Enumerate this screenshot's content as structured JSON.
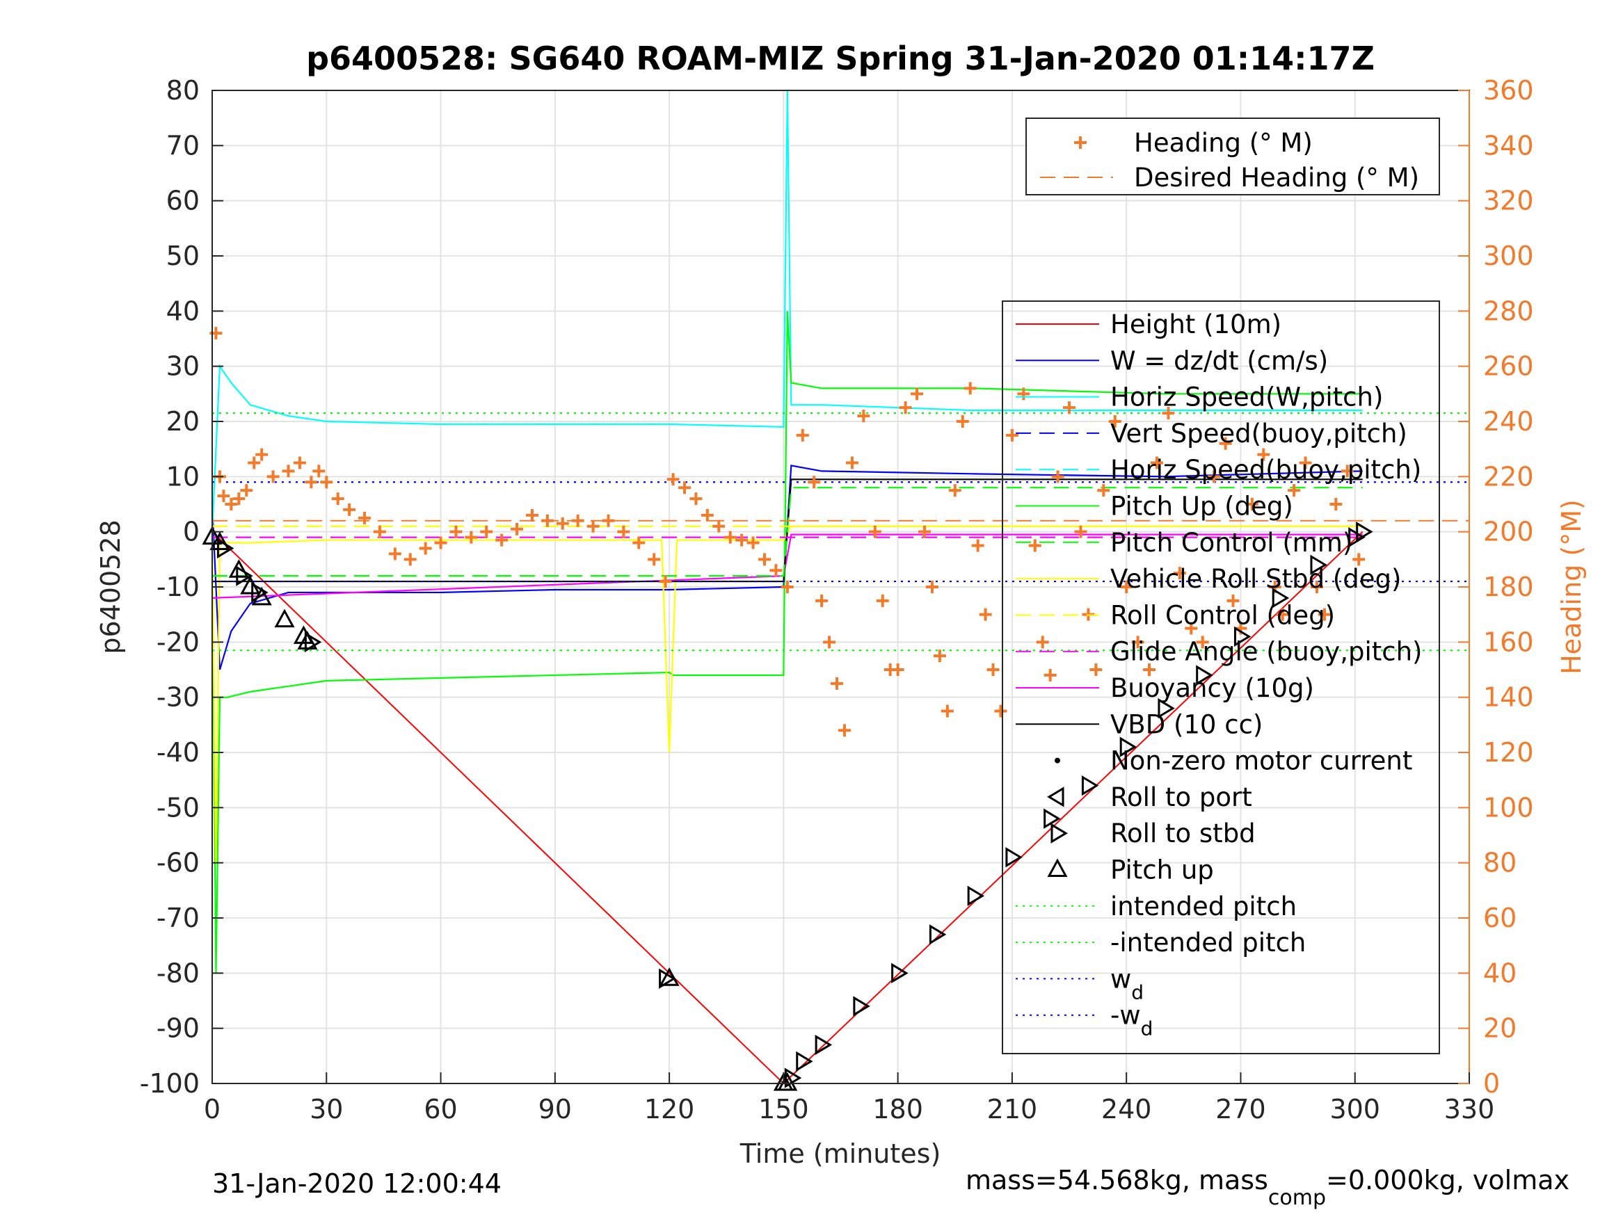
{
  "chart_data": {
    "type": "line",
    "title": "p6400528: SG640 ROAM-MIZ Spring 31-Jan-2020 01:14:17Z",
    "xlabel": "Time (minutes)",
    "ylabel_left": "p6400528",
    "ylabel_right": "Heading (°M)",
    "xlim": [
      0,
      330
    ],
    "ylim_left": [
      -100,
      80
    ],
    "ylim_right": [
      0,
      360
    ],
    "xticks": [
      0,
      30,
      60,
      90,
      120,
      150,
      180,
      210,
      240,
      270,
      300,
      330
    ],
    "yticks_left": [
      80,
      70,
      60,
      50,
      40,
      30,
      20,
      10,
      0,
      -10,
      -20,
      -30,
      -40,
      -50,
      -60,
      -70,
      -80,
      -90,
      -100
    ],
    "yticks_right": [
      360,
      340,
      320,
      300,
      280,
      260,
      240,
      220,
      200,
      180,
      160,
      140,
      120,
      100,
      80,
      60,
      40,
      20,
      0
    ],
    "grid": true,
    "footer_left": "31-Jan-2020 12:00:44",
    "footer_right": {
      "pre": "mass=54.568kg, mass",
      "sub": "comp",
      "post": "=0.000kg, volmax"
    },
    "legend_heading": [
      {
        "label": "Heading (° M)",
        "color": "#f47a2a",
        "marker": "+"
      },
      {
        "label": "Desired Heading (° M)",
        "color": "#f47a2a",
        "style": "dashed"
      }
    ],
    "legend_main": [
      {
        "label": "Height (10m)",
        "color": "#ff0000",
        "style": "solid"
      },
      {
        "label": "W = dz/dt (cm/s)",
        "color": "#0000ff",
        "style": "solid"
      },
      {
        "label": "Horiz Speed(W,pitch)",
        "color": "#00ffff",
        "style": "solid"
      },
      {
        "label": "Vert Speed(buoy,pitch)",
        "color": "#0000ff",
        "style": "dashed"
      },
      {
        "label": "Horiz Speed(buoy,pitch)",
        "color": "#00ffff",
        "style": "dashed"
      },
      {
        "label": "Pitch Up (deg)",
        "color": "#00ff00",
        "style": "solid"
      },
      {
        "label": "Pitch Control (mm)",
        "color": "#00ff00",
        "style": "dashed"
      },
      {
        "label": "Vehicle Roll Stbd (deg)",
        "color": "#ffff00",
        "style": "solid"
      },
      {
        "label": "Roll Control (deg)",
        "color": "#ffff00",
        "style": "dashed"
      },
      {
        "label": "Glide Angle (buoy,pitch)",
        "color": "#ff00ff",
        "style": "dashed"
      },
      {
        "label": "Buoyancy (10g)",
        "color": "#ff00ff",
        "style": "solid"
      },
      {
        "label": "VBD (10 cc)",
        "color": "#000000",
        "style": "solid"
      },
      {
        "label": "Non-zero motor current",
        "color": "#000000",
        "marker": "."
      },
      {
        "label": "Roll to port",
        "color": "#000000",
        "marker": "<"
      },
      {
        "label": "Roll to stbd",
        "color": "#000000",
        "marker": ">"
      },
      {
        "label": "Pitch up",
        "color": "#000000",
        "marker": "^"
      },
      {
        "label": "intended pitch",
        "color": "#00ff00",
        "style": "dotted"
      },
      {
        "label": "-intended pitch",
        "color": "#00ff00",
        "style": "dotted"
      },
      {
        "label": "w",
        "sub": "d",
        "color": "#0000ff",
        "style": "dotted"
      },
      {
        "label": "-w",
        "sub": "d",
        "color": "#0000ff",
        "style": "dotted"
      }
    ],
    "series": [
      {
        "name": "Height (10m)",
        "color": "#ff0000",
        "x": [
          0,
          150,
          302
        ],
        "y": [
          0,
          -100,
          0
        ]
      },
      {
        "name": "W = dz/dt (cm/s)",
        "color": "#0000ff",
        "x": [
          0,
          2,
          5,
          10,
          20,
          30,
          60,
          90,
          120,
          150,
          152,
          160,
          200,
          250,
          302
        ],
        "y": [
          5,
          -25,
          -18,
          -13,
          -11,
          -11,
          -11,
          -10.5,
          -10.5,
          -10,
          12,
          11,
          10.5,
          10,
          11
        ]
      },
      {
        "name": "Horiz Speed(W,pitch)",
        "color": "#00ffff",
        "x": [
          0,
          2,
          5,
          10,
          20,
          30,
          60,
          90,
          120,
          150,
          151,
          152,
          160,
          200,
          250,
          302
        ],
        "y": [
          0,
          30,
          27,
          23,
          21,
          20,
          19.5,
          19.5,
          19.5,
          19,
          80,
          23,
          23,
          22,
          22,
          22
        ]
      },
      {
        "name": "Pitch Up (deg)",
        "color": "#00ff00",
        "x": [
          0,
          1,
          2,
          4,
          10,
          20,
          30,
          60,
          90,
          120,
          121,
          150,
          151,
          152,
          160,
          200,
          250,
          302
        ],
        "y": [
          0,
          -80,
          -30,
          -30,
          -29,
          -28,
          -27,
          -26.5,
          -26,
          -25.5,
          -26,
          -26,
          40,
          27,
          26,
          26,
          25,
          25
        ]
      },
      {
        "name": "Vehicle Roll Stbd (deg)",
        "color": "#ffff00",
        "x": [
          0,
          1,
          2,
          10,
          30,
          60,
          90,
          118,
          120,
          122,
          150,
          152,
          200,
          250,
          302
        ],
        "y": [
          0,
          -60,
          -2,
          -2,
          -1.5,
          -1.5,
          -1.5,
          -1.5,
          -40,
          -1.5,
          -1.5,
          1,
          1,
          1,
          1
        ]
      },
      {
        "name": "Buoyancy (10g)",
        "color": "#ff00ff",
        "x": [
          0,
          150,
          152,
          302
        ],
        "y": [
          -12,
          -8,
          -0.5,
          -0.5
        ]
      },
      {
        "name": "VBD (10 cc)",
        "color": "#000000",
        "x": [
          0,
          150,
          152,
          302
        ],
        "y": [
          -9,
          -9,
          9.5,
          9.5
        ]
      },
      {
        "name": "Pitch Control (mm)",
        "color": "#00ff00",
        "x": [
          0,
          150,
          152,
          302
        ],
        "y": [
          -8,
          -8,
          8,
          8
        ]
      },
      {
        "name": "Roll Control (deg)",
        "color": "#ffff00",
        "x": [
          0,
          302
        ],
        "y": [
          1,
          1
        ]
      },
      {
        "name": "Glide Angle (buoy,pitch)",
        "color": "#ff00ff",
        "x": [
          0,
          302
        ],
        "y": [
          -1,
          -1
        ]
      },
      {
        "name": "intended pitch",
        "color": "#00ff00",
        "x": [
          0,
          330
        ],
        "y": [
          21.5,
          21.5
        ]
      },
      {
        "name": "-intended pitch",
        "color": "#00ff00",
        "x": [
          0,
          330
        ],
        "y": [
          -21.5,
          -21.5
        ]
      },
      {
        "name": "w_d",
        "color": "#0000ff",
        "x": [
          0,
          330
        ],
        "y": [
          9,
          9
        ]
      },
      {
        "name": "-w_d",
        "color": "#0000ff",
        "x": [
          0,
          330
        ],
        "y": [
          -9,
          -9
        ]
      }
    ],
    "heading_points": [
      [
        1,
        272
      ],
      [
        2,
        220
      ],
      [
        3,
        213
      ],
      [
        5,
        210
      ],
      [
        7,
        212
      ],
      [
        9,
        215
      ],
      [
        11,
        225
      ],
      [
        13,
        228
      ],
      [
        16,
        220
      ],
      [
        20,
        222
      ],
      [
        23,
        225
      ],
      [
        26,
        218
      ],
      [
        28,
        222
      ],
      [
        30,
        218
      ],
      [
        33,
        212
      ],
      [
        36,
        208
      ],
      [
        40,
        205
      ],
      [
        44,
        200
      ],
      [
        48,
        192
      ],
      [
        52,
        190
      ],
      [
        56,
        194
      ],
      [
        60,
        196
      ],
      [
        64,
        200
      ],
      [
        68,
        198
      ],
      [
        72,
        200
      ],
      [
        76,
        197
      ],
      [
        80,
        201
      ],
      [
        84,
        206
      ],
      [
        88,
        204
      ],
      [
        92,
        203
      ],
      [
        96,
        204
      ],
      [
        100,
        202
      ],
      [
        104,
        204
      ],
      [
        108,
        200
      ],
      [
        112,
        196
      ],
      [
        116,
        190
      ],
      [
        119,
        182
      ],
      [
        121,
        219
      ],
      [
        124,
        216
      ],
      [
        127,
        212
      ],
      [
        130,
        206
      ],
      [
        133,
        202
      ],
      [
        136,
        198
      ],
      [
        139,
        197
      ],
      [
        142,
        196
      ],
      [
        145,
        190
      ],
      [
        148,
        186
      ],
      [
        151,
        180
      ],
      [
        155,
        235
      ],
      [
        158,
        218
      ],
      [
        160,
        175
      ],
      [
        162,
        160
      ],
      [
        164,
        145
      ],
      [
        166,
        128
      ],
      [
        168,
        225
      ],
      [
        171,
        242
      ],
      [
        174,
        200
      ],
      [
        176,
        175
      ],
      [
        178,
        150
      ],
      [
        180,
        150
      ],
      [
        182,
        245
      ],
      [
        185,
        250
      ],
      [
        187,
        200
      ],
      [
        189,
        180
      ],
      [
        191,
        155
      ],
      [
        193,
        135
      ],
      [
        195,
        215
      ],
      [
        197,
        240
      ],
      [
        199,
        252
      ],
      [
        201,
        195
      ],
      [
        203,
        170
      ],
      [
        205,
        150
      ],
      [
        207,
        135
      ],
      [
        210,
        235
      ],
      [
        213,
        250
      ],
      [
        216,
        195
      ],
      [
        218,
        160
      ],
      [
        220,
        148
      ],
      [
        222,
        220
      ],
      [
        225,
        245
      ],
      [
        228,
        200
      ],
      [
        230,
        170
      ],
      [
        232,
        150
      ],
      [
        234,
        215
      ],
      [
        237,
        240
      ],
      [
        240,
        180
      ],
      [
        243,
        160
      ],
      [
        246,
        150
      ],
      [
        248,
        225
      ],
      [
        251,
        243
      ],
      [
        254,
        185
      ],
      [
        257,
        165
      ],
      [
        260,
        160
      ],
      [
        263,
        220
      ],
      [
        266,
        232
      ],
      [
        268,
        175
      ],
      [
        270,
        165
      ],
      [
        273,
        210
      ],
      [
        276,
        228
      ],
      [
        279,
        180
      ],
      [
        281,
        170
      ],
      [
        284,
        215
      ],
      [
        287,
        225
      ],
      [
        290,
        180
      ],
      [
        292,
        170
      ],
      [
        295,
        210
      ],
      [
        298,
        222
      ],
      [
        301,
        190
      ]
    ],
    "desired_heading": [
      [
        0,
        204
      ],
      [
        330,
        204
      ]
    ],
    "pitch_up_markers": [
      [
        0,
        -1
      ],
      [
        2,
        -2
      ],
      [
        7,
        -7
      ],
      [
        10,
        -10
      ],
      [
        13,
        -12
      ],
      [
        19,
        -16
      ],
      [
        24,
        -19
      ],
      [
        25,
        -20
      ],
      [
        120,
        -81
      ],
      [
        150,
        -100
      ],
      [
        151,
        -100
      ]
    ],
    "roll_markers": [
      [
        3,
        -3
      ],
      [
        8,
        -8
      ],
      [
        12,
        -11
      ],
      [
        26,
        -20
      ],
      [
        119,
        -81
      ],
      [
        152,
        -99
      ],
      [
        155,
        -96
      ],
      [
        160,
        -93
      ],
      [
        170,
        -86
      ],
      [
        180,
        -80
      ],
      [
        190,
        -73
      ],
      [
        200,
        -66
      ],
      [
        210,
        -59
      ],
      [
        220,
        -52
      ],
      [
        230,
        -46
      ],
      [
        240,
        -39
      ],
      [
        250,
        -32
      ],
      [
        260,
        -26
      ],
      [
        270,
        -19
      ],
      [
        280,
        -12
      ],
      [
        290,
        -6
      ],
      [
        300,
        -1
      ],
      [
        302,
        0
      ]
    ]
  }
}
